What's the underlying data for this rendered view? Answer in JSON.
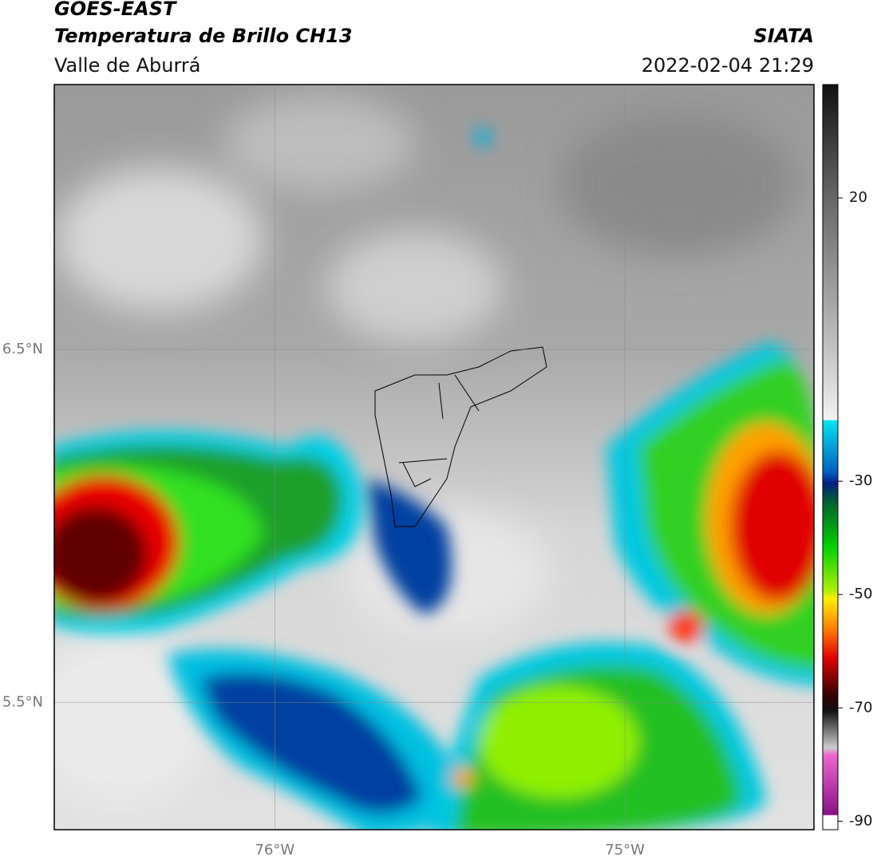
{
  "header": {
    "title": "GOES-EAST",
    "subtitle": "Temperatura de Brillo CH13",
    "region": "Valle de Aburrá",
    "source": "SIATA",
    "datetime": "2022-02-04 21:29"
  },
  "map": {
    "xlim": [
      -76.63,
      -74.46
    ],
    "ylim": [
      5.14,
      7.25
    ],
    "xticks": [
      {
        "value": -76,
        "label": "76°W"
      },
      {
        "value": -75,
        "label": "75°W"
      }
    ],
    "yticks": [
      {
        "value": 6.5,
        "label": "6.5°N"
      },
      {
        "value": 5.5,
        "label": "5.5°N"
      }
    ],
    "grid": true
  },
  "colorbar": {
    "lim": [
      -91.5,
      40
    ],
    "ticks": [
      20,
      -30,
      -50,
      -70,
      -90
    ]
  }
}
